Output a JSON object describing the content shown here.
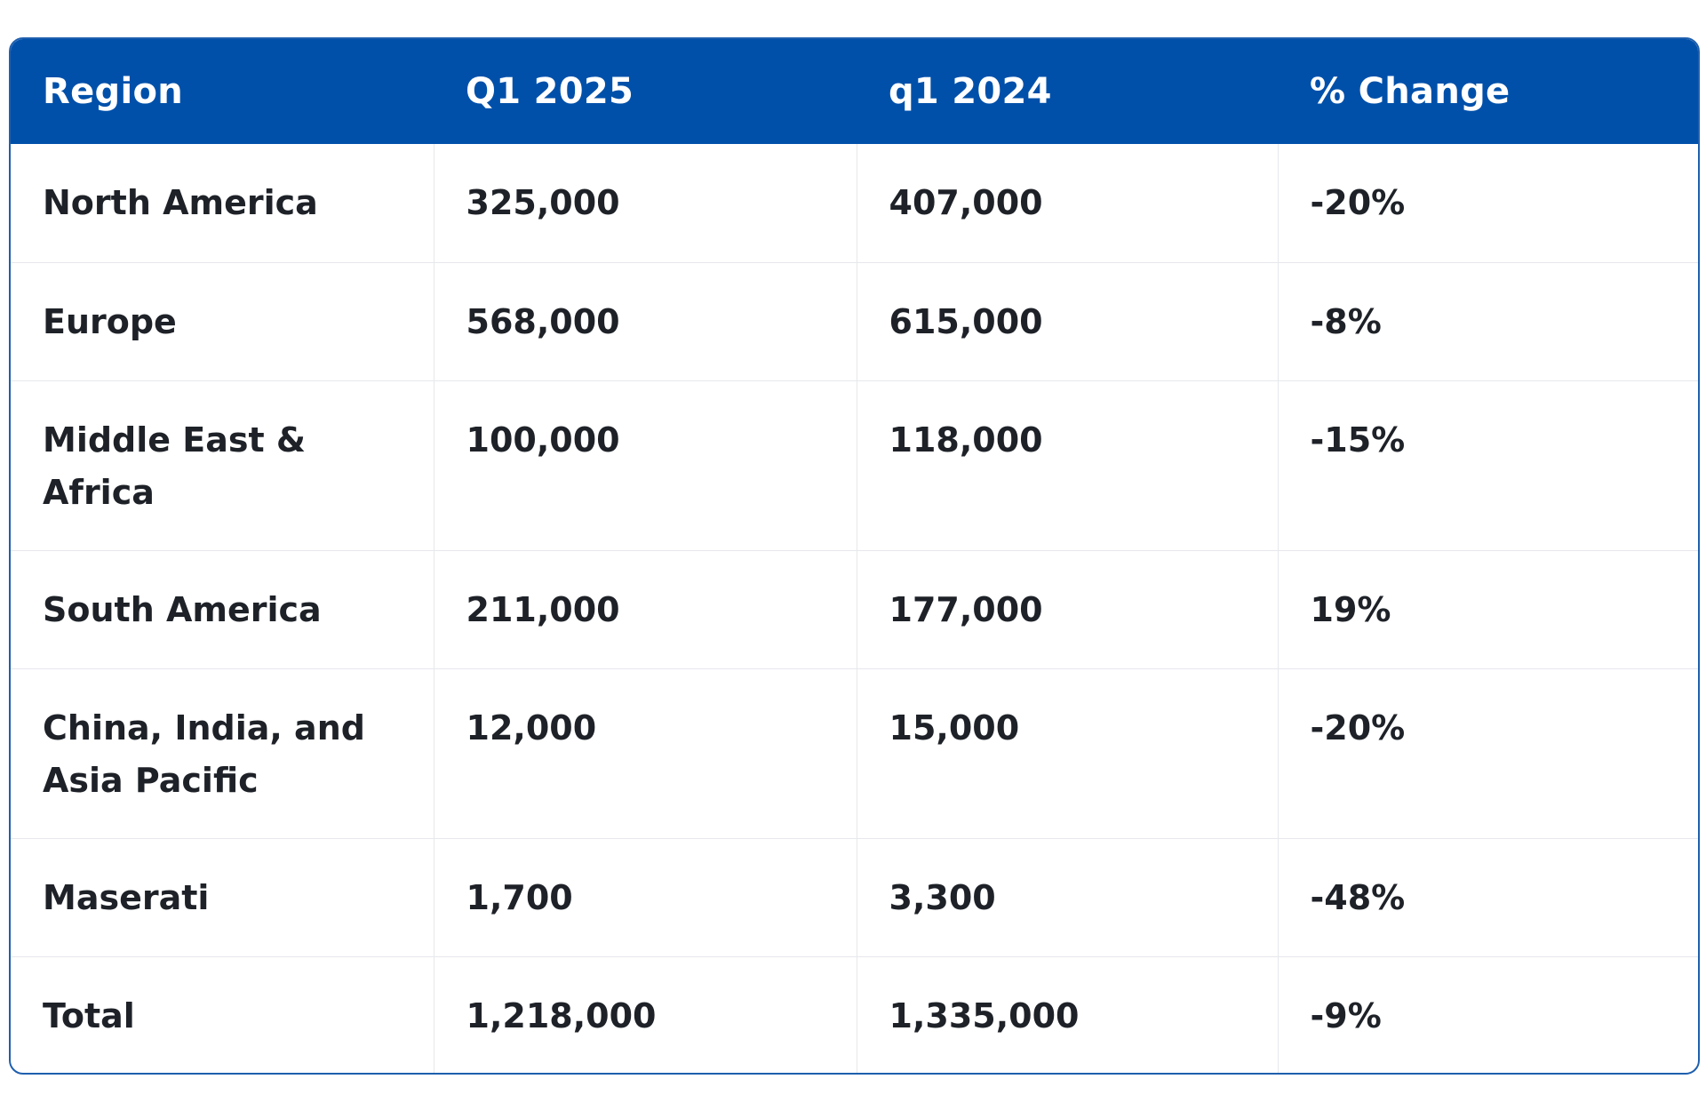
{
  "table": {
    "headers": [
      "Region",
      "Q1 2025",
      "q1 2024",
      "% Change"
    ],
    "rows": [
      [
        "North America",
        "325,000",
        "407,000",
        "-20%"
      ],
      [
        "Europe",
        "568,000",
        "615,000",
        "-8%"
      ],
      [
        "Middle East & Africa",
        "100,000",
        "118,000",
        "-15%"
      ],
      [
        "South America",
        "211,000",
        "177,000",
        "19%"
      ],
      [
        "China, India, and Asia Pacific",
        "12,000",
        "15,000",
        "-20%"
      ],
      [
        "Maserati",
        "1,700",
        "3,300",
        "-48%"
      ],
      [
        "Total",
        "1,218,000",
        "1,335,000",
        "-9%"
      ]
    ]
  },
  "colors": {
    "header_background": "#0050aa",
    "header_text": "#ffffff",
    "body_text": "#1e2228",
    "border": "#1f5fae"
  }
}
